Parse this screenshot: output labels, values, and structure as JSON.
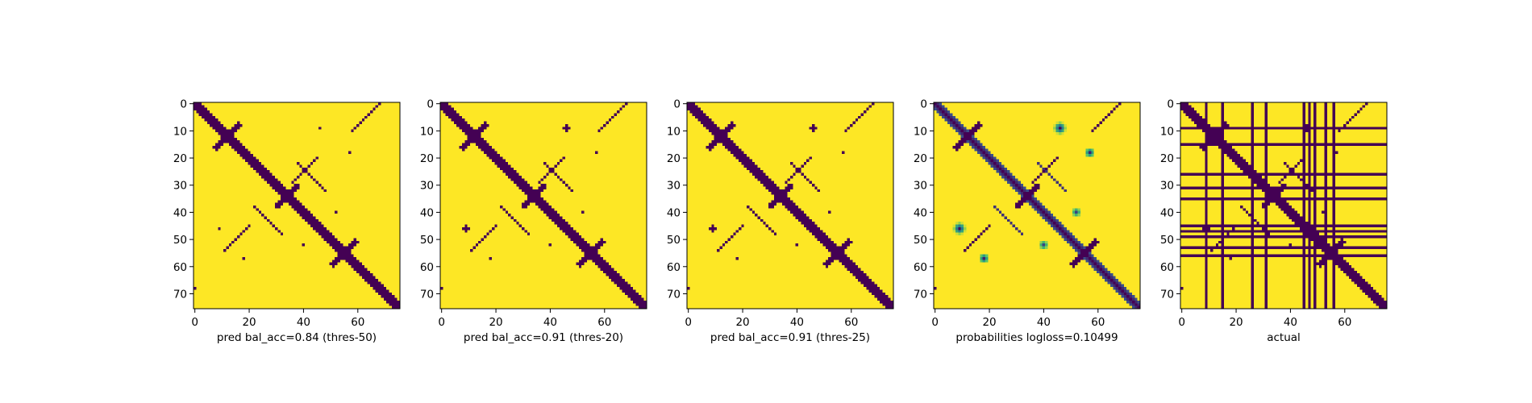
{
  "chart_data": {
    "type": "heatmap",
    "matrix_size": 76,
    "colormap": "viridis",
    "axis_range": [
      0,
      75
    ],
    "ticks": [
      0,
      10,
      20,
      30,
      40,
      50,
      60,
      70
    ],
    "x_ticks": [
      0,
      20,
      40,
      60
    ],
    "panels": [
      {
        "xlabel": "pred bal_acc=0.84 (thres-50)",
        "mode": "binary",
        "variant": "p50"
      },
      {
        "xlabel": "pred bal_acc=0.91 (thres-20)",
        "mode": "binary",
        "variant": "p20"
      },
      {
        "xlabel": "pred bal_acc=0.91 (thres-25)",
        "mode": "binary",
        "variant": "p25"
      },
      {
        "xlabel": "probabilities logloss=0.10499",
        "mode": "continuous",
        "variant": "prob"
      },
      {
        "xlabel": "actual",
        "mode": "binary",
        "variant": "actual"
      }
    ],
    "colors": {
      "low": "#440154",
      "mid": "#21918c",
      "high": "#fde725"
    }
  }
}
